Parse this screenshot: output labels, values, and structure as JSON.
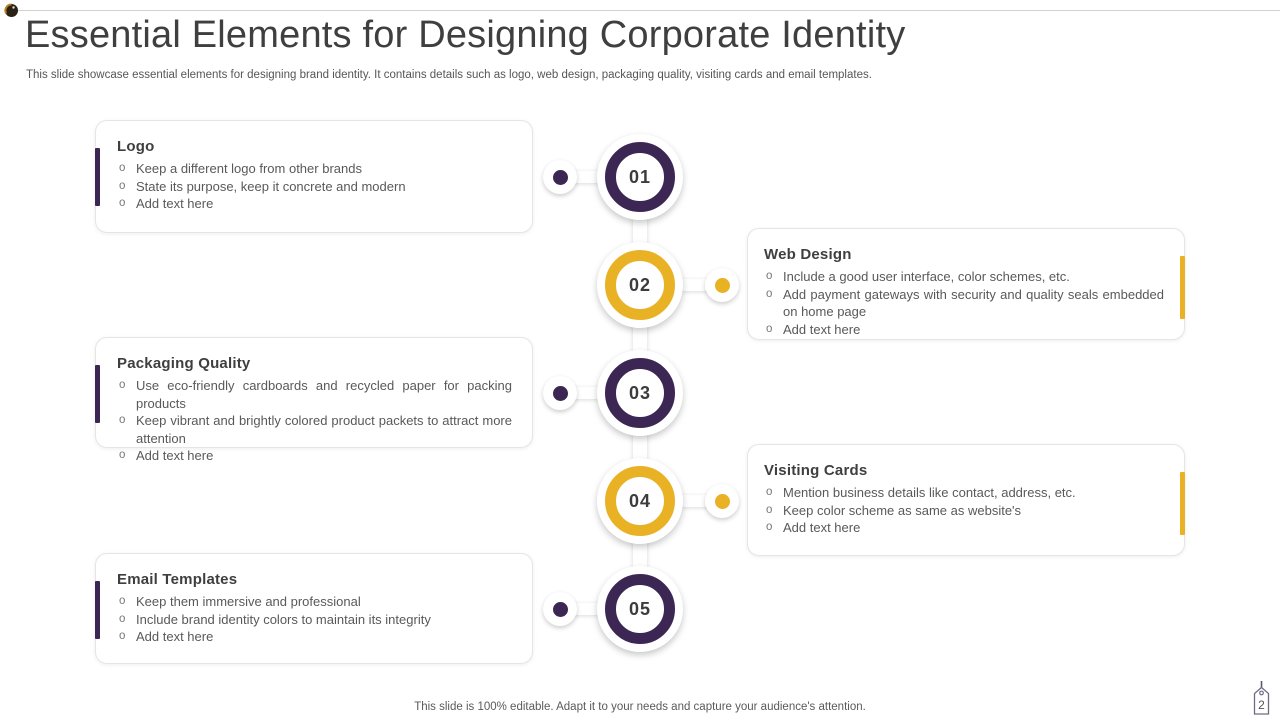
{
  "slide": {
    "title": "Essential Elements for Designing Corporate Identity",
    "subtitle": "This slide showcase essential elements for designing brand identity. It contains details such as logo, web design, packaging quality, visiting cards and email templates.",
    "footer_note": "This slide is 100% editable. Adapt it to your needs and capture your audience's attention.",
    "page_number": "2"
  },
  "colors": {
    "purple": "#3C2754",
    "yellow": "#E9B124",
    "title_text": "#3F3F3F",
    "body_text": "#595959"
  },
  "bullet_marker": "o",
  "cards": [
    {
      "title": "Logo",
      "side": "left",
      "accent_color": "#3C2754",
      "bullets": [
        "Keep a different logo from other brands",
        "State its purpose, keep it concrete and modern",
        "Add text here"
      ]
    },
    {
      "title": "Web Design",
      "side": "right",
      "accent_color": "#E9B124",
      "bullets": [
        "Include a good user interface, color schemes, etc.",
        "Add payment gateways with security and quality seals embedded on home page",
        "Add text here"
      ]
    },
    {
      "title": "Packaging Quality",
      "side": "left",
      "accent_color": "#3C2754",
      "bullets": [
        "Use eco-friendly cardboards and recycled paper for packing products",
        "Keep vibrant and brightly colored product packets to attract more attention",
        "Add text here"
      ]
    },
    {
      "title": "Visiting Cards",
      "side": "right",
      "accent_color": "#E9B124",
      "bullets": [
        "Mention business details like contact, address, etc.",
        "Keep color scheme as same as website's",
        "Add text here"
      ]
    },
    {
      "title": "Email Templates",
      "side": "left",
      "accent_color": "#3C2754",
      "bullets": [
        "Keep them immersive and professional",
        "Include brand identity colors to maintain its integrity",
        "Add text here"
      ]
    }
  ],
  "timeline_steps": [
    {
      "number": "01",
      "color": "#3C2754",
      "dot_side": "left"
    },
    {
      "number": "02",
      "color": "#E9B124",
      "dot_side": "right"
    },
    {
      "number": "03",
      "color": "#3C2754",
      "dot_side": "left"
    },
    {
      "number": "04",
      "color": "#E9B124",
      "dot_side": "right"
    },
    {
      "number": "05",
      "color": "#3C2754",
      "dot_side": "left"
    }
  ]
}
